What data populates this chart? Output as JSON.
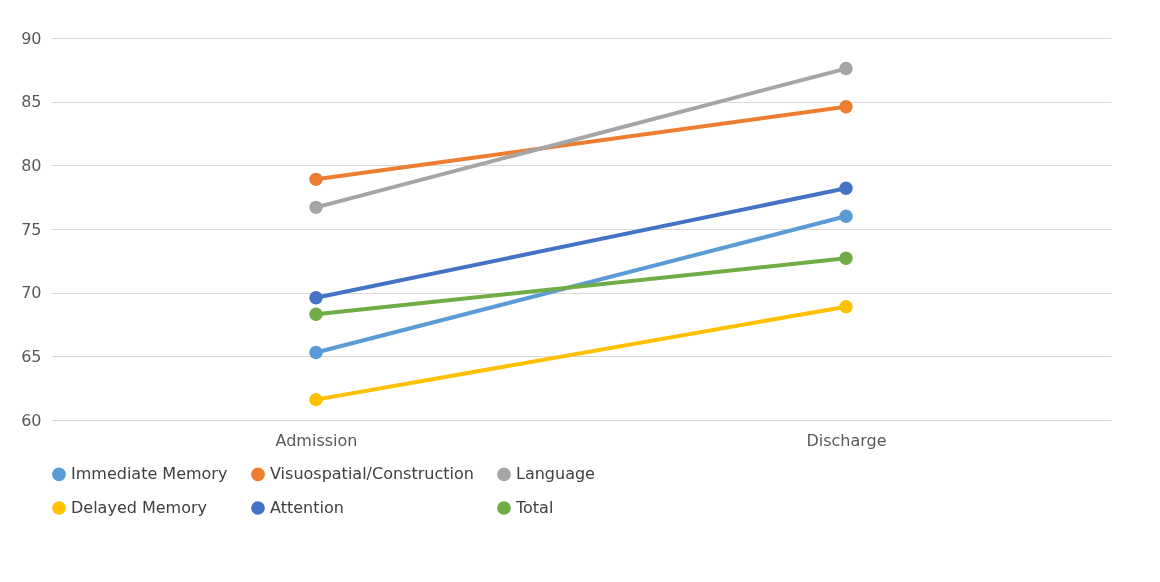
{
  "chart_data": {
    "type": "line",
    "categories": [
      "Admission",
      "Discharge"
    ],
    "series": [
      {
        "name": "Immediate Memory",
        "color": "#5b9bd5",
        "values": [
          65.3,
          76.0
        ]
      },
      {
        "name": "Visuospatial/Construction",
        "color": "#ed7d31",
        "values": [
          78.9,
          84.6
        ]
      },
      {
        "name": "Language",
        "color": "#a5a5a5",
        "values": [
          76.7,
          87.6
        ]
      },
      {
        "name": "Delayed Memory",
        "color": "#ffc000",
        "values": [
          61.6,
          68.9
        ]
      },
      {
        "name": "Attention",
        "color": "#4472c4",
        "values": [
          69.6,
          78.2
        ]
      },
      {
        "name": "Total",
        "color": "#70ad47",
        "values": [
          68.3,
          72.7
        ]
      }
    ],
    "ylim": [
      60,
      90
    ],
    "yticks": [
      60,
      65,
      70,
      75,
      80,
      85,
      90
    ],
    "grid": "y",
    "legend": "bottom",
    "marker": "circle",
    "line_style": "solid"
  }
}
